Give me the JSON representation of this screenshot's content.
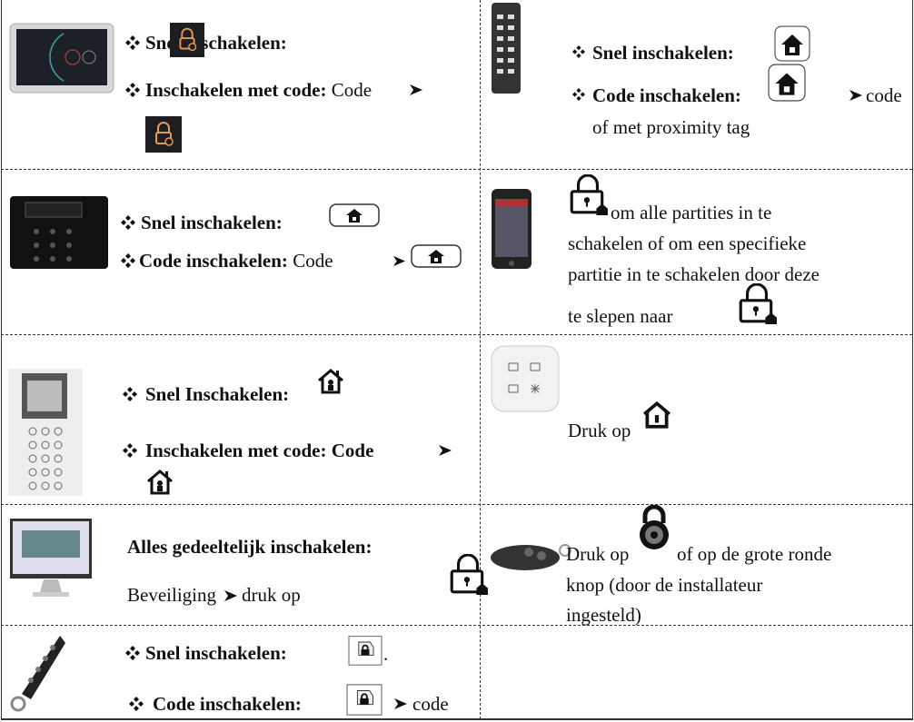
{
  "rows": [
    {
      "left": {
        "quick": "Snel inschakelen:",
        "code_label": "Inschakelen met code:",
        "code_text": "Code"
      },
      "right": {
        "quick": "Snel inschakelen:",
        "code_label": "Code inschakelen:",
        "code_text": "code",
        "code_text_2": "of met proximity tag"
      }
    },
    {
      "left": {
        "quick": "Snel inschakelen:",
        "code_label": "Code inschakelen:",
        "code_text": "Code"
      },
      "right": {
        "lines": [
          "om alle partities in te",
          "schakelen of om een specifieke",
          "partitie in te schakelen door deze",
          "te slepen naar"
        ]
      }
    },
    {
      "left": {
        "quick": "Snel Inschakelen:",
        "code_label": "Inschakelen met code: Code"
      },
      "right": {
        "text": "Druk op"
      }
    },
    {
      "left": {
        "title": "Alles gedeeltelijk inschakelen:",
        "path": "Beveiliging",
        "action": "druk op"
      },
      "right": {
        "lines": [
          "Druk op",
          "of op de grote ronde",
          "knop (door de installateur",
          "ingesteld)"
        ]
      }
    },
    {
      "left": {
        "quick": "Snel inschakelen:",
        "quick_end": ".",
        "code_label": "Code inschakelen:",
        "code_text": "code"
      }
    }
  ]
}
